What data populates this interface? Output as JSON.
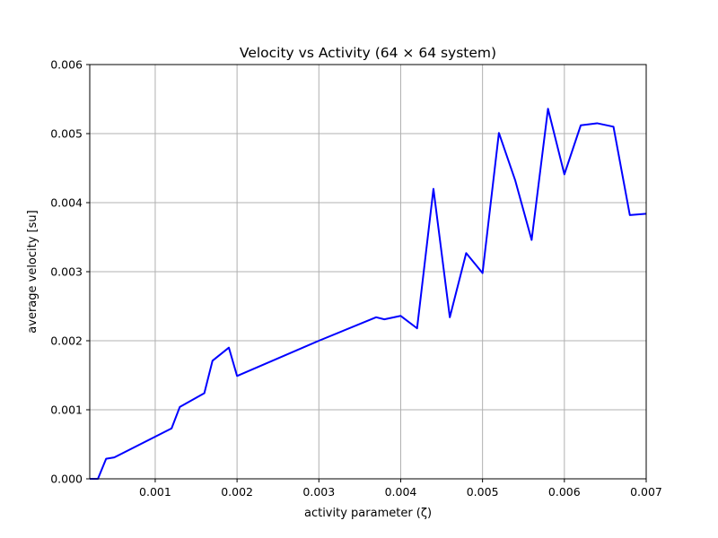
{
  "chart_data": {
    "type": "line",
    "title": "Velocity vs Activity (64 × 64 system)",
    "xlabel": "activity parameter (ζ)",
    "ylabel": "average velocity [su]",
    "xlim": [
      0.0002,
      0.007
    ],
    "ylim": [
      0,
      0.006
    ],
    "grid": true,
    "line_color": "#0000ff",
    "x_ticks": [
      "0.001",
      "0.002",
      "0.003",
      "0.004",
      "0.005",
      "0.006",
      "0.007"
    ],
    "y_ticks": [
      "0.000",
      "0.001",
      "0.002",
      "0.003",
      "0.004",
      "0.005",
      "0.006"
    ],
    "series": [
      {
        "x": [
          0.0002,
          0.0003,
          0.0004,
          0.0005,
          0.0012,
          0.0013,
          0.0016,
          0.0017,
          0.0019,
          0.002,
          0.003,
          0.0037,
          0.0038,
          0.004,
          0.0042,
          0.0044,
          0.0046,
          0.0048,
          0.005,
          0.0052,
          0.0054,
          0.0056,
          0.0058,
          0.006,
          0.0062,
          0.0064,
          0.0066,
          0.0068,
          0.007
        ],
        "y": [
          0.0,
          0.0,
          0.00029,
          0.00031,
          0.00073,
          0.00104,
          0.00124,
          0.00171,
          0.0019,
          0.00149,
          0.002,
          0.00234,
          0.00231,
          0.00236,
          0.00218,
          0.0042,
          0.00234,
          0.00327,
          0.00298,
          0.00501,
          0.00432,
          0.00346,
          0.00536,
          0.00441,
          0.00512,
          0.00515,
          0.0051,
          0.00382,
          0.00384
        ]
      }
    ]
  }
}
